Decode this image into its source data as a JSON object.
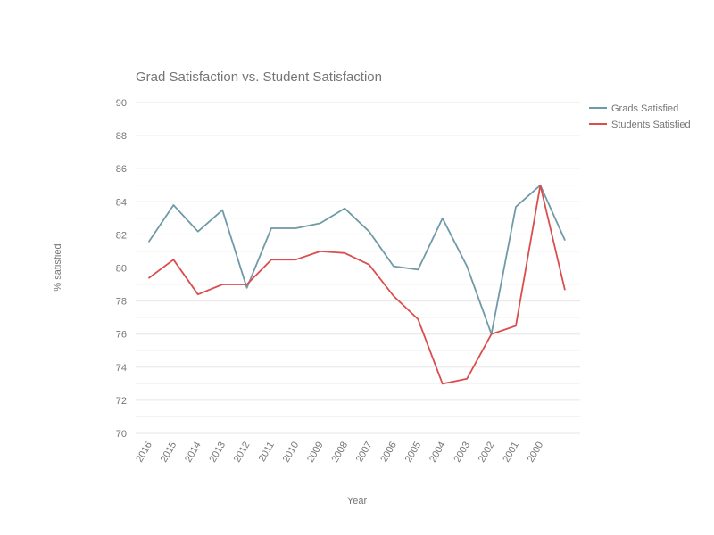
{
  "chart_data": {
    "type": "line",
    "title": "Grad Satisfaction vs. Student Satisfaction",
    "xlabel": "Year",
    "ylabel": "% satisfied",
    "categories": [
      "2016",
      "2015",
      "2014",
      "2013",
      "2012",
      "2011",
      "2010",
      "2009",
      "2008",
      "2007",
      "2006",
      "2005",
      "2004",
      "2003",
      "2002",
      "2001",
      "2000",
      ""
    ],
    "ylim": [
      70,
      90
    ],
    "yticks": [
      70,
      72,
      74,
      76,
      78,
      80,
      82,
      84,
      86,
      88,
      90
    ],
    "grid": true,
    "legend_position": "right",
    "series": [
      {
        "name": "Grads Satisfied",
        "color": "#6f9aa8",
        "values": [
          81.6,
          83.8,
          82.2,
          83.5,
          78.8,
          82.4,
          82.4,
          82.7,
          83.6,
          82.2,
          80.1,
          79.9,
          83.0,
          80.1,
          76.0,
          83.7,
          85.0,
          81.7
        ]
      },
      {
        "name": "Students Satisfied",
        "color": "#db4d4d",
        "values": [
          79.4,
          80.5,
          78.4,
          79.0,
          79.0,
          80.5,
          80.5,
          81.0,
          80.9,
          80.2,
          78.3,
          76.9,
          73.0,
          73.3,
          76.0,
          76.5,
          85.0,
          78.7
        ]
      }
    ]
  }
}
